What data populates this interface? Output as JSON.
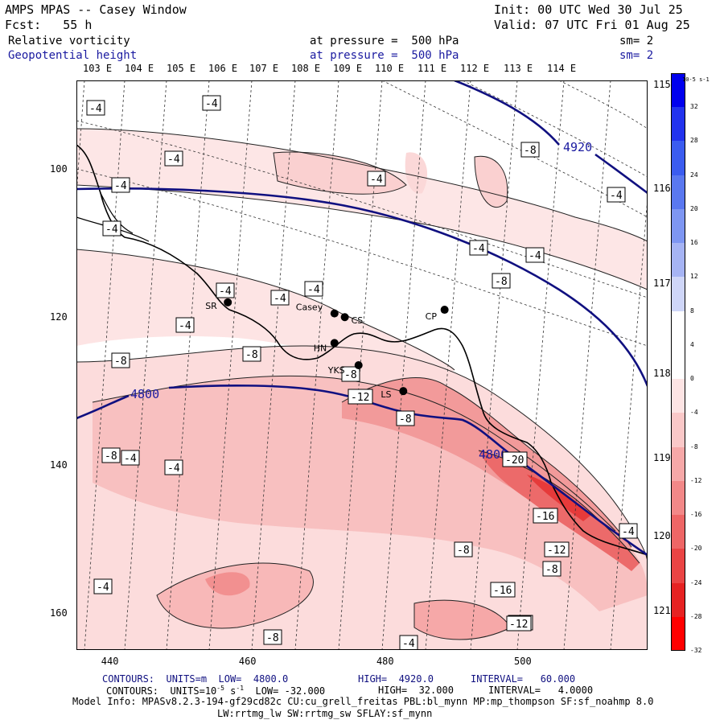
{
  "header": {
    "model_title": "AMPS MPAS -- Casey Window",
    "init": "Init: 00 UTC Wed 30 Jul 25",
    "forecast": "Fcst:   55 h",
    "valid": "Valid: 07 UTC Fri 01 Aug 25",
    "field1_name": "Relative vorticity",
    "field1_level": "at pressure =  500 hPa",
    "field1_sm": "sm= 2",
    "field2_name": "Geopotential height",
    "field2_level": "at pressure =  500 hPa",
    "field2_sm": "sm= 2"
  },
  "longitude_labels": [
    "103 E",
    "104 E",
    "105 E",
    "106 E",
    "107 E",
    "108 E",
    "109 E",
    "110 E",
    "111 E",
    "112 E",
    "113 E",
    "114 E"
  ],
  "right_longitude_labels": [
    "115 E",
    "116 E",
    "117 E",
    "118 E",
    "119 E",
    "120 E",
    "121 E"
  ],
  "x_ticks": [
    "440",
    "460",
    "480",
    "500"
  ],
  "y_ticks": [
    "100",
    "120",
    "140",
    "160"
  ],
  "stations": [
    {
      "name": "SR",
      "x": 457,
      "y": 118
    },
    {
      "name": "Casey",
      "x": 472.5,
      "y": 119.5
    },
    {
      "name": "CS",
      "x": 474,
      "y": 120
    },
    {
      "name": "HN",
      "x": 472.5,
      "y": 123.5
    },
    {
      "name": "CP",
      "x": 488.5,
      "y": 119
    },
    {
      "name": "YKS",
      "x": 476,
      "y": 126.5
    },
    {
      "name": "LS",
      "x": 482.5,
      "y": 130
    }
  ],
  "height_contours": [
    {
      "label": "4920"
    },
    {
      "label": "4800"
    }
  ],
  "vorticity_labels": [
    "-4",
    "-4",
    "-4",
    "-4",
    "-4",
    "-8",
    "-8",
    "-4",
    "-4",
    "-4",
    "-4",
    "-4",
    "-4",
    "-4",
    "-4",
    "-8",
    "-8",
    "-12",
    "-8",
    "-8",
    "-16",
    "-20",
    "-12",
    "-16",
    "-12",
    "-8",
    "-8",
    "-4",
    "-4",
    "-4",
    "-8",
    "-8",
    "-12",
    "-4",
    "-4"
  ],
  "colorbar": {
    "units": "10-5 s-1",
    "levels": [
      "32",
      "28",
      "24",
      "20",
      "16",
      "12",
      "8",
      "4",
      "0",
      "-4",
      "-8",
      "-12",
      "-16",
      "-20",
      "-24",
      "-28",
      "-32"
    ],
    "colors": [
      "#0000ee",
      "#2233ee",
      "#3b5cf0",
      "#5a78f0",
      "#7e96f2",
      "#a6b4f4",
      "#cfd6f8",
      "#ffffff",
      "#ffffff",
      "#fde4e4",
      "#fac8c8",
      "#f6a8a8",
      "#f28888",
      "#ee6666",
      "#ea4444",
      "#e62222",
      "#ff0000"
    ]
  },
  "footer": {
    "line1_a": "CONTOURS:  UNITS=m  LOW=  4800.0",
    "line1_b": "HIGH=  4920.0",
    "line1_c": "INTERVAL=   60.000",
    "line2_a": "CONTOURS:  UNITS=10",
    "line2_exp": "-5",
    "line2_s": " s",
    "line2_sexp": "-1",
    "line2_b": "  LOW= -32.000",
    "line2_c": "HIGH=  32.000",
    "line2_d": "INTERVAL=   4.0000",
    "line3": "Model Info: MPASv8.2.3-194-gf29cd82c CU:cu_grell_freitas PBL:bl_mynn MP:mp_thompson SF:sf_noahmp 8.0",
    "line4": "LW:rrtmg_lw SW:rrtmg_sw SFLAY:sf_mynn"
  }
}
